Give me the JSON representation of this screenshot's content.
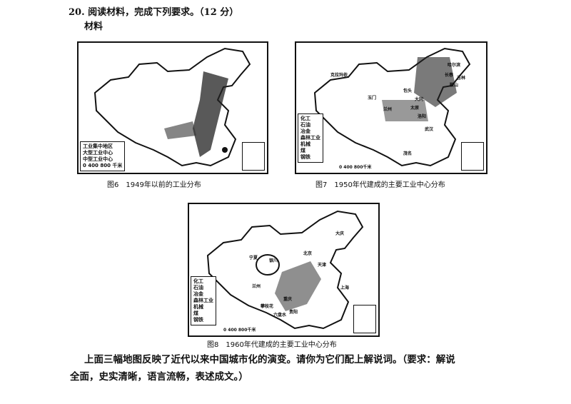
{
  "question": {
    "title": "20. 阅读材料，完成下列要求。（12 分）",
    "material_label": "材料"
  },
  "maps": [
    {
      "caption": "图6　1949年以前的工业分布",
      "legend": [
        "工业集中地区",
        "大型工业中心",
        "中型工业中心"
      ],
      "scale": "0  400  800 千米"
    },
    {
      "caption": "图7　1950年代建成的主要工业中心分布",
      "legend": [
        "化工",
        "石油",
        "冶金",
        "森林工业",
        "机械",
        "煤",
        "钢铁"
      ],
      "scale": "0  400  800千米",
      "cities": [
        "克拉玛依",
        "玉门",
        "兰州",
        "包头",
        "大同",
        "太原",
        "洛阳",
        "武汉",
        "茂名",
        "鞍山",
        "长春",
        "吉林",
        "哈尔滨"
      ]
    },
    {
      "caption": "图8　1960年代建成的主要工业中心分布",
      "legend": [
        "化工",
        "石油",
        "冶金",
        "森林工业",
        "机械",
        "煤",
        "钢铁"
      ],
      "scale": "0  400  800千米",
      "cities": [
        "大庆",
        "宁夏",
        "银川",
        "北京",
        "天津",
        "攀枝花",
        "重庆",
        "上海",
        "兰州",
        "贵阳",
        "六盘水"
      ]
    }
  ],
  "prompt": {
    "line1": "上面三幅地图反映了近代以来中国城市化的演变。请你为它们配上解说词。（要求：解说",
    "line2": "全面，史实清晰，语言流畅，表述成文。）"
  }
}
